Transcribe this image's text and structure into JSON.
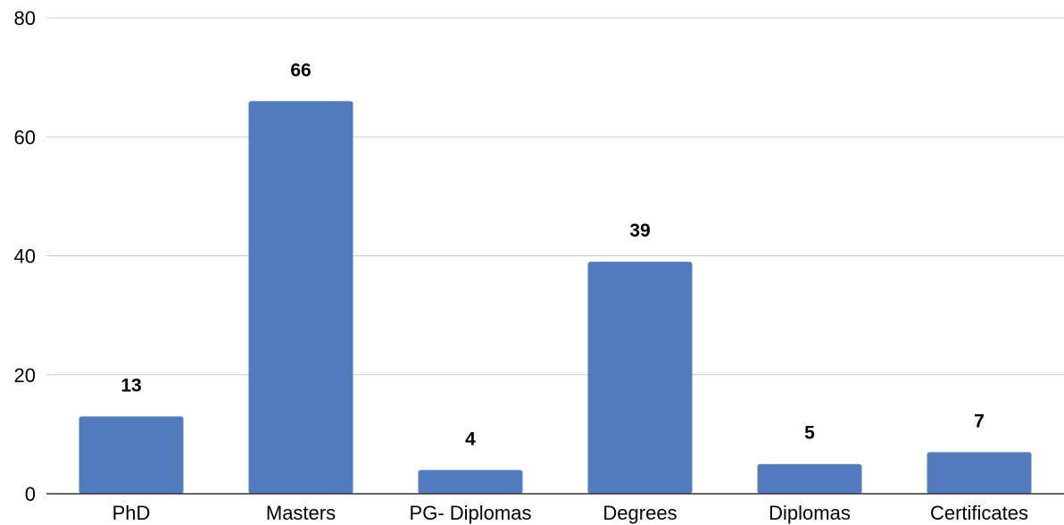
{
  "chart_data": {
    "type": "bar",
    "title": "",
    "xlabel": "",
    "ylabel": "",
    "categories": [
      "PhD",
      "Masters",
      "PG- Diplomas",
      "Degrees",
      "Diplomas",
      "Certificates"
    ],
    "values": [
      13,
      66,
      4,
      39,
      5,
      7
    ],
    "ylim": [
      0,
      80
    ],
    "yticks": [
      0,
      20,
      40,
      60,
      80
    ],
    "grid": true,
    "legend": "none",
    "bar_color": "#527bbf",
    "data_labels": [
      "13",
      "66",
      "4",
      "39",
      "5",
      "7"
    ]
  }
}
